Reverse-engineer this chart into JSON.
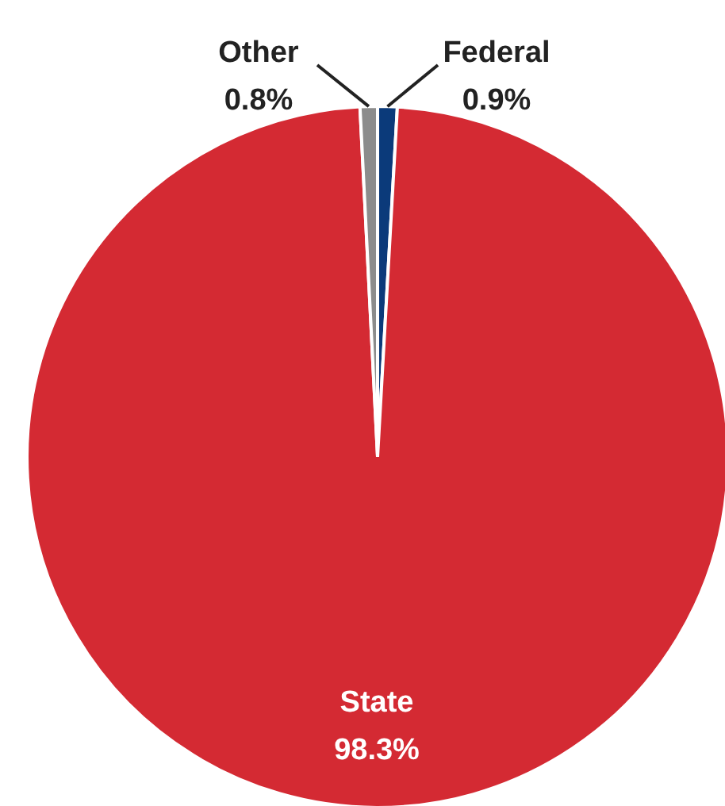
{
  "chart_data": {
    "type": "pie",
    "categories": [
      "Federal",
      "State",
      "Other"
    ],
    "values": [
      0.9,
      98.3,
      0.8
    ],
    "colors": [
      "#0b3a7a",
      "#d42a33",
      "#8c8c8c"
    ],
    "value_labels": [
      "0.9%",
      "98.3%",
      "0.8%"
    ]
  }
}
